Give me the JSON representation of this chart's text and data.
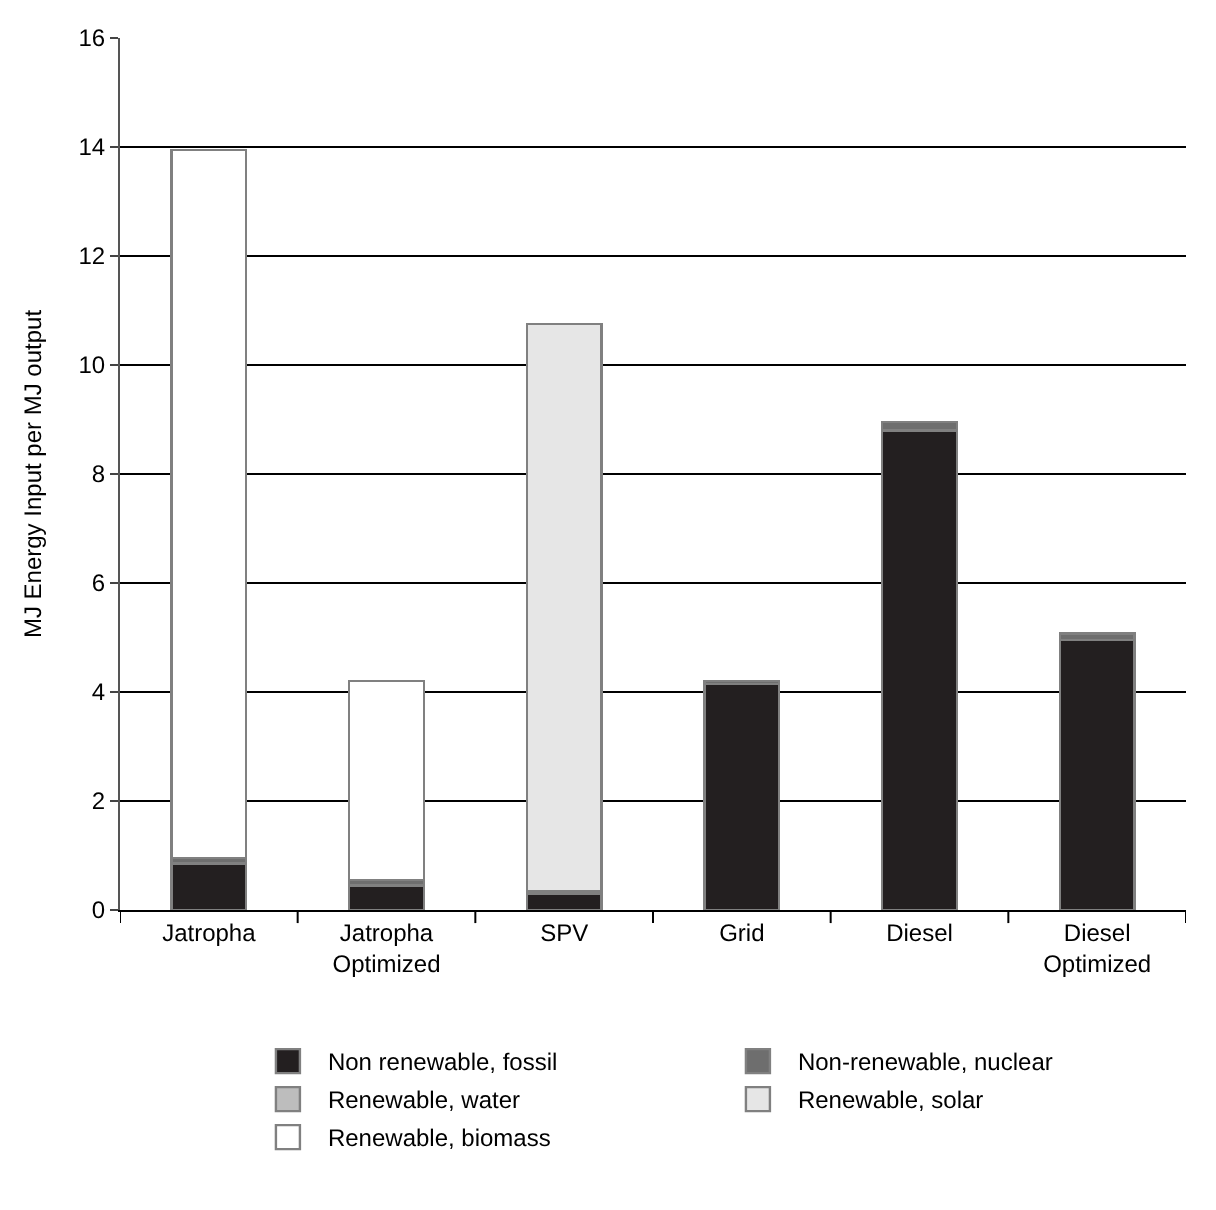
{
  "chart_data": {
    "type": "bar",
    "stacked": true,
    "ylabel": "MJ Energy Input per MJ output",
    "categories": [
      "Jatropha",
      "Jatropha Optimized",
      "SPV",
      "Grid",
      "Diesel",
      "Diesel Optimized"
    ],
    "series": [
      {
        "name": "Non renewable, fossil",
        "color": "#231f20",
        "values": [
          0.85,
          0.45,
          0.3,
          4.15,
          8.8,
          4.95
        ]
      },
      {
        "name": "Non-renewable, nuclear",
        "color": "#6e6e6e",
        "values": [
          0.1,
          0.1,
          0.05,
          0.05,
          0.15,
          0.12
        ]
      },
      {
        "name": "Renewable, water",
        "color": "#bdbdbd",
        "values": [
          null,
          null,
          null,
          null,
          null,
          null
        ]
      },
      {
        "name": "Renewable, solar",
        "color": "#e6e6e6",
        "values": [
          null,
          null,
          10.4,
          null,
          null,
          null
        ]
      },
      {
        "name": "Renewable, biomass",
        "color": "#ffffff",
        "values": [
          13.0,
          3.65,
          null,
          null,
          null,
          null
        ]
      }
    ],
    "ylim": [
      0,
      16
    ],
    "yticks": [
      0,
      2,
      4,
      6,
      8,
      10,
      12,
      14,
      16
    ],
    "grid": "y",
    "legend": "bottom"
  }
}
